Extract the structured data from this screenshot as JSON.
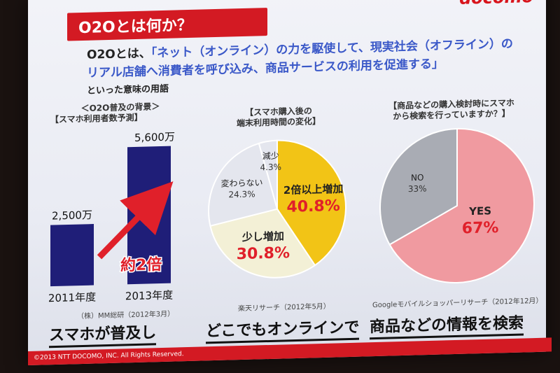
{
  "header": {
    "brand": "docomo",
    "title": "O2Oとは何か？"
  },
  "definition": {
    "prefix": "O2Oとは、",
    "quote_line1": "「ネット（オンライン）の力を駆使して、現実社会（オフライン）の",
    "quote_line2": "リアル店舗へ消費者を呼び込み、商品サービスの利用を促進する」",
    "suffix": "といった意味の用語"
  },
  "panels": {
    "left": {
      "heading": "＜O2O普及の背景＞",
      "subheading": "【スマホ利用者数予測】",
      "arrow_label": "約2倍",
      "source": "（株）MM総研（2012年3月）",
      "caption": "スマホが普及し"
    },
    "middle": {
      "heading_line1": "【スマホ購入後の",
      "heading_line2": "端末利用時間の変化】",
      "source": "楽天リサーチ（2012年5月）",
      "caption": "どこでもオンラインで"
    },
    "right": {
      "heading_line1": "【商品などの購入検討時にスマホ",
      "heading_line2": "から検索を行っていますか？】",
      "source": "Googleモバイルショッパーリサーチ（2012年12月）",
      "caption": "商品などの情報を検索"
    }
  },
  "footer": {
    "copyright": "©2013 NTT DOCOMO, INC. All Rights Reserved."
  },
  "colors": {
    "accent_red": "#d31a23",
    "bar_navy": "#1f1e78",
    "text_blue": "#3a58c8",
    "pie_yellow": "#f2c416",
    "pie_cream": "#f3f0d6",
    "pie_lightgray": "#e4e6ee",
    "pie_gray": "#a9acb4",
    "pie_pink": "#f09aa0"
  },
  "chart_data": [
    {
      "type": "bar",
      "categories": [
        "2011年度",
        "2013年度"
      ],
      "values": [
        2500,
        5600
      ],
      "value_labels": [
        "2,500万",
        "5,600万"
      ],
      "ylim": [
        0,
        6000
      ]
    },
    {
      "type": "pie",
      "slices": [
        {
          "label": "2倍以上増加",
          "value": 40.8,
          "value_label": "40.8%",
          "color": "#f2c416"
        },
        {
          "label": "少し増加",
          "value": 30.8,
          "value_label": "30.8%",
          "color": "#f3f0d6"
        },
        {
          "label": "変わらない",
          "value": 24.3,
          "value_label": "24.3%",
          "color": "#e4e6ee"
        },
        {
          "label": "減少",
          "value": 4.3,
          "value_label": "4.3%",
          "color": "#e4e6ee"
        }
      ]
    },
    {
      "type": "pie",
      "slices": [
        {
          "label": "YES",
          "value": 67,
          "value_label": "67%",
          "color": "#f09aa0"
        },
        {
          "label": "NO",
          "value": 33,
          "value_label": "33%",
          "color": "#a9acb4"
        }
      ]
    }
  ]
}
